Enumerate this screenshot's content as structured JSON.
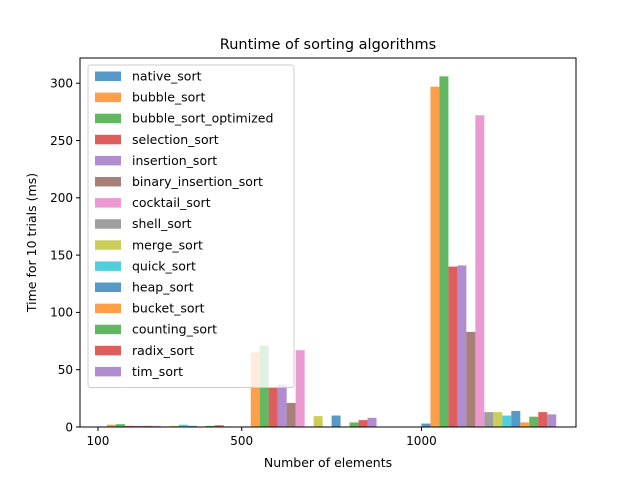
{
  "chart_data": {
    "type": "bar",
    "title": "Runtime of sorting algorithms",
    "xlabel": "Number of elements",
    "ylabel": "Time for 10 trials (ms)",
    "xticks": [
      100,
      500,
      1000
    ],
    "yticks": [
      0,
      50,
      100,
      150,
      200,
      250,
      300
    ],
    "xlim": [
      50,
      1430
    ],
    "ylim": [
      0,
      322
    ],
    "legend_position": "upper-left",
    "bar_alpha": 0.75,
    "categories": [
      100,
      500,
      1000
    ],
    "bar_width": 25,
    "series": [
      {
        "name": "native_sort",
        "color": "#1f77b4",
        "values": [
          0.5,
          0.5,
          3
        ]
      },
      {
        "name": "bubble_sort",
        "color": "#ff7f0e",
        "values": [
          2,
          65,
          297
        ]
      },
      {
        "name": "bubble_sort_optimized",
        "color": "#2ca02c",
        "values": [
          2.5,
          71,
          306
        ]
      },
      {
        "name": "selection_sort",
        "color": "#d62728",
        "values": [
          1,
          35,
          140
        ]
      },
      {
        "name": "insertion_sort",
        "color": "#9467bd",
        "values": [
          1,
          37,
          141
        ]
      },
      {
        "name": "binary_insertion_sort",
        "color": "#8c564b",
        "values": [
          1,
          21,
          83
        ]
      },
      {
        "name": "cocktail_sort",
        "color": "#e377c2",
        "values": [
          1,
          67,
          272
        ]
      },
      {
        "name": "shell_sort",
        "color": "#7f7f7f",
        "values": [
          0.5,
          0.5,
          13
        ]
      },
      {
        "name": "merge_sort",
        "color": "#bcbd22",
        "values": [
          1,
          9.5,
          13
        ]
      },
      {
        "name": "quick_sort",
        "color": "#17becf",
        "values": [
          2,
          0.5,
          10
        ]
      },
      {
        "name": "heap_sort",
        "color": "#1f77b4",
        "values": [
          1,
          10,
          14
        ]
      },
      {
        "name": "bucket_sort",
        "color": "#ff7f0e",
        "values": [
          0.5,
          0.5,
          4
        ]
      },
      {
        "name": "counting_sort",
        "color": "#2ca02c",
        "values": [
          1,
          4,
          9
        ]
      },
      {
        "name": "radix_sort",
        "color": "#d62728",
        "values": [
          1.5,
          6,
          13
        ]
      },
      {
        "name": "tim_sort",
        "color": "#9467bd",
        "values": [
          0.5,
          8,
          11
        ]
      }
    ]
  }
}
